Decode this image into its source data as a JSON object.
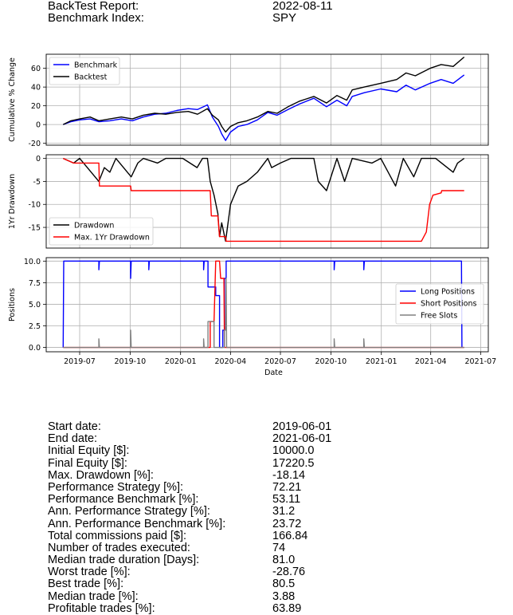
{
  "header": {
    "report_label": "BackTest Report:",
    "report_date": "2022-08-11",
    "benchmark_label": "Benchmark Index:",
    "benchmark_value": "SPY"
  },
  "chart_data": [
    {
      "type": "line",
      "ylabel": "Cumulative % Change",
      "ylim": [
        -22,
        75
      ],
      "yticks": [
        -20,
        0,
        20,
        40,
        60
      ],
      "legend_position": "top-left",
      "grid": true,
      "series": [
        {
          "name": "Benchmark",
          "color": "#0000ff",
          "points": [
            [
              "2019-06-01",
              0
            ],
            [
              "2019-06-15",
              3
            ],
            [
              "2019-07-01",
              5
            ],
            [
              "2019-07-20",
              6
            ],
            [
              "2019-08-05",
              3
            ],
            [
              "2019-08-25",
              4
            ],
            [
              "2019-09-15",
              6
            ],
            [
              "2019-10-05",
              4
            ],
            [
              "2019-10-25",
              8
            ],
            [
              "2019-11-15",
              11
            ],
            [
              "2019-12-05",
              12
            ],
            [
              "2019-12-25",
              15
            ],
            [
              "2020-01-15",
              17
            ],
            [
              "2020-02-01",
              16
            ],
            [
              "2020-02-19",
              21
            ],
            [
              "2020-02-28",
              8
            ],
            [
              "2020-03-10",
              -2
            ],
            [
              "2020-03-16",
              -10
            ],
            [
              "2020-03-23",
              -17
            ],
            [
              "2020-04-01",
              -8
            ],
            [
              "2020-04-15",
              -2
            ],
            [
              "2020-05-01",
              0
            ],
            [
              "2020-05-20",
              5
            ],
            [
              "2020-06-08",
              13
            ],
            [
              "2020-06-25",
              10
            ],
            [
              "2020-07-15",
              16
            ],
            [
              "2020-08-05",
              22
            ],
            [
              "2020-08-31",
              28
            ],
            [
              "2020-09-23",
              19
            ],
            [
              "2020-10-12",
              26
            ],
            [
              "2020-10-30",
              20
            ],
            [
              "2020-11-09",
              30
            ],
            [
              "2020-12-01",
              34
            ],
            [
              "2020-12-31",
              38
            ],
            [
              "2021-01-29",
              35
            ],
            [
              "2021-02-15",
              42
            ],
            [
              "2021-03-04",
              37
            ],
            [
              "2021-03-31",
              44
            ],
            [
              "2021-04-20",
              48
            ],
            [
              "2021-05-12",
              44
            ],
            [
              "2021-06-01",
              53
            ]
          ]
        },
        {
          "name": "Backtest",
          "color": "#000000",
          "points": [
            [
              "2019-06-01",
              0
            ],
            [
              "2019-06-15",
              4
            ],
            [
              "2019-07-01",
              6
            ],
            [
              "2019-07-20",
              8
            ],
            [
              "2019-08-05",
              4
            ],
            [
              "2019-08-25",
              6
            ],
            [
              "2019-09-15",
              8
            ],
            [
              "2019-10-05",
              6
            ],
            [
              "2019-10-25",
              10
            ],
            [
              "2019-11-15",
              12
            ],
            [
              "2019-12-05",
              11
            ],
            [
              "2019-12-25",
              13
            ],
            [
              "2020-01-15",
              14
            ],
            [
              "2020-02-01",
              11
            ],
            [
              "2020-02-19",
              17
            ],
            [
              "2020-02-28",
              10
            ],
            [
              "2020-03-10",
              5
            ],
            [
              "2020-03-16",
              -2
            ],
            [
              "2020-03-23",
              -8
            ],
            [
              "2020-04-01",
              -2
            ],
            [
              "2020-04-15",
              2
            ],
            [
              "2020-05-01",
              4
            ],
            [
              "2020-05-20",
              8
            ],
            [
              "2020-06-08",
              14
            ],
            [
              "2020-06-25",
              12
            ],
            [
              "2020-07-15",
              19
            ],
            [
              "2020-08-05",
              25
            ],
            [
              "2020-08-31",
              30
            ],
            [
              "2020-09-23",
              23
            ],
            [
              "2020-10-12",
              31
            ],
            [
              "2020-10-30",
              26
            ],
            [
              "2020-11-09",
              37
            ],
            [
              "2020-12-01",
              40
            ],
            [
              "2020-12-31",
              44
            ],
            [
              "2021-01-29",
              48
            ],
            [
              "2021-02-15",
              55
            ],
            [
              "2021-03-04",
              52
            ],
            [
              "2021-03-31",
              60
            ],
            [
              "2021-04-20",
              64
            ],
            [
              "2021-05-12",
              62
            ],
            [
              "2021-06-01",
              72
            ]
          ]
        }
      ]
    },
    {
      "type": "line",
      "ylabel": "1Yr Drawdown",
      "ylim": [
        -19.5,
        0.8
      ],
      "yticks": [
        0,
        -5,
        -10,
        -15
      ],
      "legend_position": "bottom-left",
      "grid": true,
      "series": [
        {
          "name": "Drawdown",
          "color": "#000000",
          "points": [
            [
              "2019-06-01",
              0
            ],
            [
              "2019-06-20",
              -1
            ],
            [
              "2019-07-01",
              0
            ],
            [
              "2019-08-05",
              -5
            ],
            [
              "2019-08-15",
              -2
            ],
            [
              "2019-08-25",
              -3
            ],
            [
              "2019-09-05",
              0
            ],
            [
              "2019-10-03",
              -4
            ],
            [
              "2019-10-15",
              -1
            ],
            [
              "2019-10-25",
              0
            ],
            [
              "2019-11-20",
              -1
            ],
            [
              "2019-12-05",
              0
            ],
            [
              "2020-01-05",
              0
            ],
            [
              "2020-01-31",
              -2
            ],
            [
              "2020-02-10",
              0
            ],
            [
              "2020-02-19",
              0
            ],
            [
              "2020-02-24",
              -5
            ],
            [
              "2020-03-02",
              -8
            ],
            [
              "2020-03-09",
              -12
            ],
            [
              "2020-03-12",
              -17
            ],
            [
              "2020-03-16",
              -14
            ],
            [
              "2020-03-23",
              -18
            ],
            [
              "2020-04-01",
              -10
            ],
            [
              "2020-04-15",
              -6
            ],
            [
              "2020-05-01",
              -5
            ],
            [
              "2020-05-20",
              -3
            ],
            [
              "2020-06-08",
              0
            ],
            [
              "2020-06-15",
              -2
            ],
            [
              "2020-07-01",
              -1
            ],
            [
              "2020-07-20",
              0
            ],
            [
              "2020-08-31",
              0
            ],
            [
              "2020-09-08",
              -5
            ],
            [
              "2020-09-23",
              -7
            ],
            [
              "2020-10-12",
              0
            ],
            [
              "2020-10-26",
              -5
            ],
            [
              "2020-11-09",
              0
            ],
            [
              "2020-12-15",
              -1
            ],
            [
              "2020-12-31",
              0
            ],
            [
              "2021-01-27",
              -6
            ],
            [
              "2021-02-10",
              0
            ],
            [
              "2021-03-01",
              -4
            ],
            [
              "2021-03-15",
              0
            ],
            [
              "2021-04-10",
              0
            ],
            [
              "2021-05-12",
              -3
            ],
            [
              "2021-05-20",
              -1
            ],
            [
              "2021-06-01",
              0
            ]
          ]
        },
        {
          "name": "Max. 1Yr Drawdown",
          "color": "#ff0000",
          "points": [
            [
              "2019-06-01",
              0
            ],
            [
              "2019-06-20",
              -1
            ],
            [
              "2019-07-01",
              -1
            ],
            [
              "2019-08-05",
              -1
            ],
            [
              "2019-08-06",
              -6
            ],
            [
              "2019-10-02",
              -6
            ],
            [
              "2019-10-03",
              -7
            ],
            [
              "2020-02-24",
              -7
            ],
            [
              "2020-02-26",
              -12.5
            ],
            [
              "2020-03-09",
              -12.5
            ],
            [
              "2020-03-12",
              -17
            ],
            [
              "2020-03-23",
              -17
            ],
            [
              "2020-03-24",
              -18
            ],
            [
              "2021-03-15",
              -18
            ],
            [
              "2021-03-24",
              -16
            ],
            [
              "2021-03-30",
              -10
            ],
            [
              "2021-04-05",
              -8
            ],
            [
              "2021-04-20",
              -7.5
            ],
            [
              "2021-04-21",
              -7
            ],
            [
              "2021-06-01",
              -7
            ]
          ]
        }
      ]
    },
    {
      "type": "line",
      "ylabel": "Positions",
      "ylim": [
        -0.5,
        10.4
      ],
      "yticks": [
        0.0,
        2.5,
        5.0,
        7.5,
        10.0
      ],
      "legend_position": "center-right",
      "grid": true,
      "xlabel": "Date",
      "xticks": [
        "2019-07",
        "2019-10",
        "2020-01",
        "2020-04",
        "2020-07",
        "2020-10",
        "2021-01",
        "2021-04",
        "2021-07"
      ],
      "series": [
        {
          "name": "Long Positions",
          "color": "#0000ff",
          "points": [
            [
              "2019-06-01",
              0
            ],
            [
              "2019-06-02",
              10
            ],
            [
              "2019-08-05",
              10
            ],
            [
              "2019-08-05",
              9
            ],
            [
              "2019-08-06",
              10
            ],
            [
              "2019-10-02",
              10
            ],
            [
              "2019-10-02",
              8
            ],
            [
              "2019-10-03",
              10
            ],
            [
              "2019-11-04",
              10
            ],
            [
              "2019-11-04",
              9
            ],
            [
              "2019-11-05",
              10
            ],
            [
              "2020-02-12",
              10
            ],
            [
              "2020-02-12",
              9
            ],
            [
              "2020-02-13",
              10
            ],
            [
              "2020-02-20",
              10
            ],
            [
              "2020-02-20",
              7
            ],
            [
              "2020-03-05",
              7
            ],
            [
              "2020-03-05",
              6
            ],
            [
              "2020-03-12",
              6
            ],
            [
              "2020-03-12",
              0
            ],
            [
              "2020-03-18",
              0
            ],
            [
              "2020-03-18",
              2
            ],
            [
              "2020-03-21",
              2
            ],
            [
              "2020-03-21",
              8
            ],
            [
              "2020-03-24",
              8
            ],
            [
              "2020-03-24",
              10
            ],
            [
              "2020-10-07",
              10
            ],
            [
              "2020-10-07",
              9
            ],
            [
              "2020-10-08",
              10
            ],
            [
              "2020-11-30",
              10
            ],
            [
              "2020-11-30",
              9
            ],
            [
              "2020-12-01",
              10
            ],
            [
              "2021-05-27",
              10
            ],
            [
              "2021-05-28",
              0
            ]
          ]
        },
        {
          "name": "Short Positions",
          "color": "#ff0000",
          "points": [
            [
              "2019-06-01",
              0
            ],
            [
              "2020-02-24",
              0
            ],
            [
              "2020-02-24",
              3
            ],
            [
              "2020-03-02",
              3
            ],
            [
              "2020-03-05",
              10
            ],
            [
              "2020-03-12",
              10
            ],
            [
              "2020-03-14",
              8
            ],
            [
              "2020-03-20",
              8
            ],
            [
              "2020-03-21",
              0
            ],
            [
              "2021-06-01",
              0
            ]
          ]
        },
        {
          "name": "Free Slots",
          "color": "#808080",
          "points": [
            [
              "2019-06-01",
              0
            ],
            [
              "2019-08-05",
              0
            ],
            [
              "2019-08-05",
              1
            ],
            [
              "2019-08-06",
              0
            ],
            [
              "2019-10-02",
              0
            ],
            [
              "2019-10-02",
              2
            ],
            [
              "2019-10-03",
              0
            ],
            [
              "2020-02-12",
              0
            ],
            [
              "2020-02-12",
              1
            ],
            [
              "2020-02-13",
              0
            ],
            [
              "2020-02-20",
              0
            ],
            [
              "2020-02-20",
              3
            ],
            [
              "2020-03-02",
              3
            ],
            [
              "2020-03-02",
              0
            ],
            [
              "2020-03-21",
              0
            ],
            [
              "2020-03-21",
              2
            ],
            [
              "2020-03-23",
              2
            ],
            [
              "2020-03-24",
              8
            ],
            [
              "2020-03-25",
              0
            ],
            [
              "2020-10-07",
              0
            ],
            [
              "2020-10-07",
              1
            ],
            [
              "2020-10-08",
              0
            ],
            [
              "2020-11-30",
              0
            ],
            [
              "2020-11-30",
              1
            ],
            [
              "2020-12-01",
              0
            ],
            [
              "2021-06-01",
              0
            ]
          ]
        }
      ]
    }
  ],
  "stats": [
    {
      "label": "Start date:",
      "value": "2019-06-01"
    },
    {
      "label": "End date:",
      "value": "2021-06-01"
    },
    {
      "label": "Initial Equity [$]:",
      "value": "10000.0"
    },
    {
      "label": "Final Equity [$]:",
      "value": "17220.5"
    },
    {
      "label": "Max. Drawdown [%]:",
      "value": "-18.14"
    },
    {
      "label": "Performance Strategy [%]:",
      "value": "72.21"
    },
    {
      "label": "Performance Benchmark [%]:",
      "value": "53.11"
    },
    {
      "label": "Ann. Performance Strategy [%]:",
      "value": "31.2"
    },
    {
      "label": "Ann. Performance Benchmark [%]:",
      "value": "23.72"
    },
    {
      "label": "Total commissions paid [$]:",
      "value": "166.84"
    },
    {
      "label": "Number of trades executed:",
      "value": "74"
    },
    {
      "label": "Median trade duration [Days]:",
      "value": "81.0"
    },
    {
      "label": "Worst trade [%]:",
      "value": "-28.76"
    },
    {
      "label": "Best trade [%]:",
      "value": "80.5"
    },
    {
      "label": "Median trade [%]:",
      "value": "3.88"
    },
    {
      "label": "Profitable trades [%]:",
      "value": "63.89"
    }
  ]
}
